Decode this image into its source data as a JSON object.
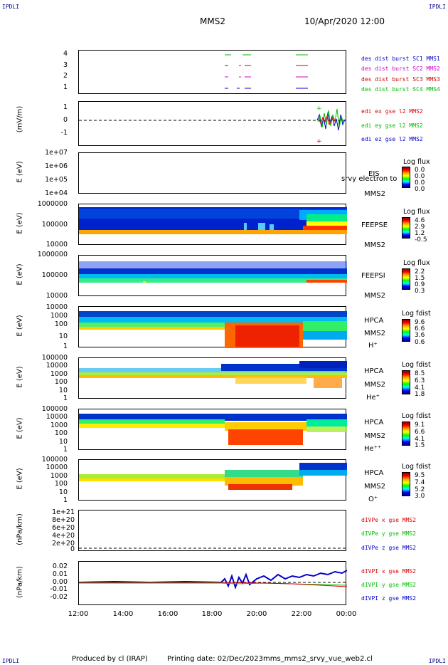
{
  "corners": {
    "top_left": "IPDLI",
    "top_right": "IPDLI",
    "bottom_left": "IPDLI",
    "bottom_right": "IPDLI"
  },
  "header": {
    "spacecraft": "MMS2",
    "datetime": "10/Apr/2020 12:00"
  },
  "footer": {
    "producer": "Produced by cl (IRAP)",
    "printing_date": "Printing date: 02/Dec/2023",
    "script": "mms_mms2_srvy_vue_web2.cl"
  },
  "colors": {
    "MMS1": "#0000cc",
    "MMS2": "#cc00cc",
    "MMS3": "#cc0000",
    "MMS4": "#00bb00",
    "red": "#dd0000",
    "green": "#00bb00",
    "blue": "#0000cc"
  },
  "chart_data": [
    {
      "type": "line",
      "panel": "burst",
      "ylabel": "",
      "yticks": [
        "4",
        "3",
        "2",
        "1"
      ],
      "legend": [
        "des dist burst SC1 MMS1",
        "des dist burst SC2 MMS2",
        "des dist burst SC3 MMS3",
        "des dist burst SC4 MMS4"
      ],
      "x": [
        "12:00",
        "14:00",
        "16:00",
        "18:00",
        "20:00",
        "22:00",
        "00:00"
      ]
    },
    {
      "type": "line",
      "panel": "edi",
      "ylabel": "(mV/m)",
      "yticks": [
        "1",
        "0",
        "-1"
      ],
      "legend": [
        "edi ex gse l2 MMS2",
        "edi ey gse l2 MMS2",
        "edi ez gse l2 MMS2"
      ]
    },
    {
      "type": "heatmap",
      "panel": "eis",
      "ylabel": "E (eV)",
      "yticks": [
        "1e+07",
        "1e+06",
        "1e+05",
        "1e+04"
      ],
      "side": [
        "EIS",
        "MMS2"
      ],
      "overlay": "srvy electron to",
      "colorbar": {
        "title": "Log flux",
        "values": [
          "0.0",
          "0.0",
          "0.0",
          "0.0"
        ]
      }
    },
    {
      "type": "heatmap",
      "panel": "feepse",
      "ylabel": "E (eV)",
      "yticks": [
        "1000000",
        "100000",
        "10000"
      ],
      "side": [
        "FEEPSE",
        "MMS2"
      ],
      "colorbar": {
        "title": "Log flux",
        "values": [
          "4.6",
          "2.9",
          "1.2",
          "-0.5"
        ]
      }
    },
    {
      "type": "heatmap",
      "panel": "feepsi",
      "ylabel": "E (eV)",
      "yticks": [
        "1000000",
        "100000",
        "10000"
      ],
      "side": [
        "FEEPSI",
        "MMS2"
      ],
      "colorbar": {
        "title": "Log flux",
        "values": [
          "2.2",
          "1.5",
          "0.9",
          "0.3"
        ]
      }
    },
    {
      "type": "heatmap",
      "panel": "hpca_h",
      "ylabel": "E (eV)",
      "yticks": [
        "10000",
        "1000",
        "100",
        "10",
        "1"
      ],
      "side": [
        "HPCA",
        "MMS2",
        "H⁺"
      ],
      "colorbar": {
        "title": "Log fdist",
        "values": [
          "9.6",
          "6.6",
          "3.6",
          "0.6"
        ]
      }
    },
    {
      "type": "heatmap",
      "panel": "hpca_he",
      "ylabel": "E (eV)",
      "yticks": [
        "100000",
        "10000",
        "1000",
        "100",
        "10",
        "1"
      ],
      "side": [
        "HPCA",
        "MMS2",
        "He⁺"
      ],
      "colorbar": {
        "title": "Log fdist",
        "values": [
          "8.5",
          "6.3",
          "4.1",
          "1.8"
        ]
      }
    },
    {
      "type": "heatmap",
      "panel": "hpca_hepp",
      "ylabel": "E (eV)",
      "yticks": [
        "100000",
        "10000",
        "1000",
        "100",
        "10",
        "1"
      ],
      "side": [
        "HPCA",
        "MMS2",
        "He⁺⁺"
      ],
      "colorbar": {
        "title": "Log fdist",
        "values": [
          "9.1",
          "6.6",
          "4.1",
          "1.5"
        ]
      }
    },
    {
      "type": "heatmap",
      "panel": "hpca_o",
      "ylabel": "E (eV)",
      "yticks": [
        "100000",
        "10000",
        "1000",
        "100",
        "10",
        "1"
      ],
      "side": [
        "HPCA",
        "MMS2",
        "O⁺"
      ],
      "colorbar": {
        "title": "Log fdist",
        "values": [
          "9.5",
          "7.4",
          "5.2",
          "3.0"
        ]
      }
    },
    {
      "type": "line",
      "panel": "divpe",
      "ylabel": "(nPa/km)",
      "yticks": [
        "1e+21",
        "8e+20",
        "6e+20",
        "4e+20",
        "2e+20",
        "0"
      ],
      "legend": [
        "dIVPe x gse MMS2",
        "dIVPe y gse MMS2",
        "dIVPe z gse MMS2"
      ]
    },
    {
      "type": "line",
      "panel": "divpi",
      "ylabel": "(nPa/km)",
      "yticks": [
        "0.02",
        "0.01",
        "0.00",
        "-0.01",
        "-0.02"
      ],
      "legend": [
        "dIVPI x gse MMS2",
        "dIVPI y gse MMS2",
        "dIVPI z gse MMS2"
      ]
    }
  ],
  "xaxis": {
    "ticks": [
      "12:00",
      "14:00",
      "16:00",
      "18:00",
      "20:00",
      "22:00",
      "00:00"
    ]
  }
}
